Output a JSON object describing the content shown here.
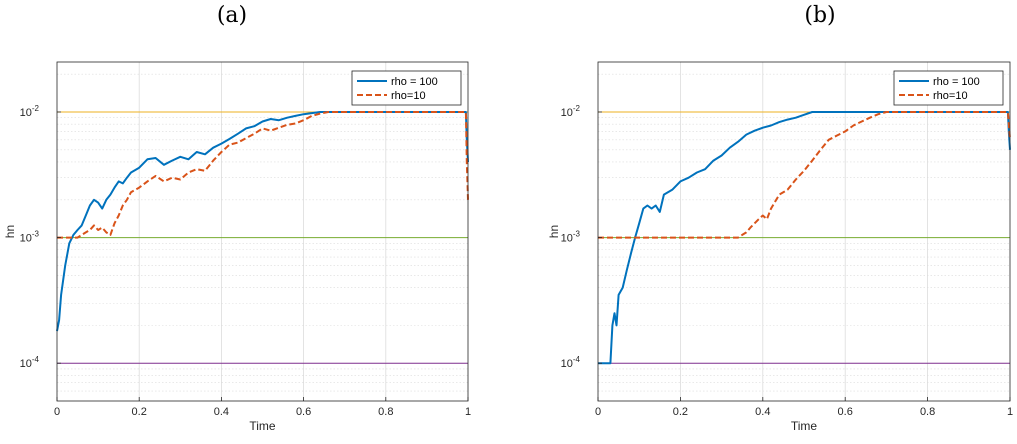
{
  "colors": {
    "series1": "#0072BD",
    "series2": "#D95319",
    "ref_1e-2": "#EDB120",
    "ref_1e-3": "#77AC30",
    "ref_1e-4": "#7E2F8E",
    "axis": "#262626",
    "grid": "#dcdcdc"
  },
  "chart_data": [
    {
      "type": "line",
      "title": "(a)",
      "xlabel": "Time",
      "ylabel": "hn",
      "xlim": [
        0,
        1
      ],
      "ylim": [
        5e-05,
        0.025
      ],
      "yscale": "log",
      "x_ticks": [
        "0",
        "0.2",
        "0.4",
        "0.6",
        "0.8",
        "1"
      ],
      "y_ticks": [
        {
          "base": "10",
          "exp": "-4"
        },
        {
          "base": "10",
          "exp": "-3"
        },
        {
          "base": "10",
          "exp": "-2"
        }
      ],
      "grid": true,
      "legend_position": "top-right",
      "reference_lines": [
        0.01,
        0.001,
        0.0001
      ],
      "series": [
        {
          "name": "rho = 100",
          "style": "solid",
          "x": [
            0,
            0.005,
            0.01,
            0.02,
            0.03,
            0.04,
            0.05,
            0.06,
            0.07,
            0.08,
            0.09,
            0.1,
            0.11,
            0.12,
            0.13,
            0.14,
            0.15,
            0.16,
            0.17,
            0.18,
            0.2,
            0.22,
            0.24,
            0.26,
            0.28,
            0.3,
            0.32,
            0.34,
            0.36,
            0.38,
            0.4,
            0.42,
            0.44,
            0.46,
            0.48,
            0.5,
            0.52,
            0.54,
            0.56,
            0.58,
            0.6,
            0.62,
            0.64,
            0.66,
            0.68,
            0.7,
            0.8,
            0.9,
            0.995,
            0.997,
            1.0
          ],
          "y": [
            0.00018,
            0.00022,
            0.00035,
            0.0006,
            0.0009,
            0.00105,
            0.00115,
            0.00125,
            0.0015,
            0.0018,
            0.002,
            0.0019,
            0.0017,
            0.002,
            0.0022,
            0.0025,
            0.0028,
            0.0027,
            0.003,
            0.0033,
            0.0036,
            0.0042,
            0.0043,
            0.0038,
            0.0041,
            0.0044,
            0.0042,
            0.0048,
            0.0046,
            0.0052,
            0.0056,
            0.0061,
            0.0067,
            0.0074,
            0.0077,
            0.0084,
            0.0088,
            0.0086,
            0.009,
            0.0093,
            0.0096,
            0.0098,
            0.01,
            0.01,
            0.01,
            0.01,
            0.01,
            0.01,
            0.01,
            0.006,
            0.004
          ]
        },
        {
          "name": "rho=10",
          "style": "dashed",
          "x": [
            0,
            0.02,
            0.03,
            0.04,
            0.05,
            0.06,
            0.07,
            0.08,
            0.09,
            0.1,
            0.11,
            0.12,
            0.13,
            0.14,
            0.15,
            0.16,
            0.17,
            0.18,
            0.2,
            0.22,
            0.24,
            0.26,
            0.28,
            0.3,
            0.32,
            0.34,
            0.36,
            0.38,
            0.4,
            0.42,
            0.44,
            0.46,
            0.48,
            0.5,
            0.52,
            0.54,
            0.56,
            0.58,
            0.6,
            0.62,
            0.64,
            0.66,
            0.68,
            0.7,
            0.8,
            0.9,
            0.995,
            0.997,
            1.0
          ],
          "y": [
            0.001,
            0.001,
            0.001,
            0.001,
            0.001,
            0.00105,
            0.0011,
            0.00115,
            0.00125,
            0.00115,
            0.0012,
            0.0011,
            0.00105,
            0.0013,
            0.0015,
            0.0018,
            0.002,
            0.0023,
            0.0025,
            0.0028,
            0.0031,
            0.0028,
            0.003,
            0.0029,
            0.0033,
            0.0035,
            0.0034,
            0.0041,
            0.0048,
            0.0055,
            0.0057,
            0.0062,
            0.0067,
            0.0074,
            0.0071,
            0.0075,
            0.0079,
            0.0081,
            0.0086,
            0.0093,
            0.0097,
            0.01,
            0.01,
            0.01,
            0.01,
            0.01,
            0.01,
            0.004,
            0.002
          ]
        }
      ]
    },
    {
      "type": "line",
      "title": "(b)",
      "xlabel": "Time",
      "ylabel": "hn",
      "xlim": [
        0,
        1
      ],
      "ylim": [
        5e-05,
        0.025
      ],
      "yscale": "log",
      "x_ticks": [
        "0",
        "0.2",
        "0.4",
        "0.6",
        "0.8",
        "1"
      ],
      "y_ticks": [
        {
          "base": "10",
          "exp": "-4"
        },
        {
          "base": "10",
          "exp": "-3"
        },
        {
          "base": "10",
          "exp": "-2"
        }
      ],
      "grid": true,
      "legend_position": "top-right",
      "reference_lines": [
        0.01,
        0.001,
        0.0001
      ],
      "series": [
        {
          "name": "rho = 100",
          "style": "solid",
          "x": [
            0,
            0.02,
            0.03,
            0.035,
            0.04,
            0.045,
            0.05,
            0.06,
            0.07,
            0.08,
            0.09,
            0.1,
            0.11,
            0.12,
            0.13,
            0.14,
            0.15,
            0.16,
            0.18,
            0.2,
            0.22,
            0.24,
            0.26,
            0.28,
            0.3,
            0.32,
            0.34,
            0.36,
            0.38,
            0.4,
            0.42,
            0.44,
            0.46,
            0.48,
            0.5,
            0.52,
            0.55,
            0.6,
            0.7,
            0.8,
            0.9,
            0.995,
            0.997,
            1.0
          ],
          "y": [
            0.0001,
            0.0001,
            0.0001,
            0.0002,
            0.00025,
            0.0002,
            0.00035,
            0.0004,
            0.00055,
            0.00075,
            0.001,
            0.0013,
            0.0017,
            0.0018,
            0.0017,
            0.0018,
            0.0016,
            0.0022,
            0.0024,
            0.0028,
            0.003,
            0.0033,
            0.0035,
            0.0041,
            0.0045,
            0.0052,
            0.0058,
            0.0066,
            0.0071,
            0.0075,
            0.0078,
            0.0083,
            0.0087,
            0.009,
            0.0095,
            0.01,
            0.01,
            0.01,
            0.01,
            0.01,
            0.01,
            0.01,
            0.007,
            0.005
          ]
        },
        {
          "name": "rho=10",
          "style": "dashed",
          "x": [
            0,
            0.1,
            0.2,
            0.3,
            0.34,
            0.35,
            0.36,
            0.37,
            0.38,
            0.39,
            0.4,
            0.41,
            0.42,
            0.44,
            0.46,
            0.48,
            0.5,
            0.52,
            0.54,
            0.56,
            0.58,
            0.6,
            0.62,
            0.64,
            0.66,
            0.68,
            0.7,
            0.75,
            0.8,
            0.9,
            0.995,
            0.997,
            1.0
          ],
          "y": [
            0.001,
            0.001,
            0.001,
            0.001,
            0.001,
            0.00105,
            0.0011,
            0.0012,
            0.0013,
            0.0014,
            0.0015,
            0.0014,
            0.0017,
            0.0022,
            0.0024,
            0.0029,
            0.0034,
            0.0041,
            0.005,
            0.006,
            0.0065,
            0.007,
            0.0078,
            0.0084,
            0.009,
            0.0096,
            0.01,
            0.01,
            0.01,
            0.01,
            0.01,
            0.008,
            0.006
          ]
        }
      ]
    }
  ]
}
